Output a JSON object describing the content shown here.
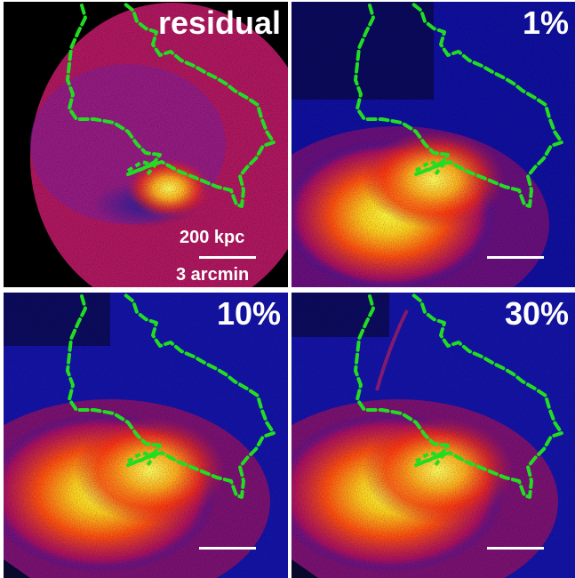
{
  "panels": [
    {
      "label": "residual",
      "scale_top": "200 kpc",
      "scale_bottom": "3 arcmin"
    },
    {
      "label": "1%"
    },
    {
      "label": "10%"
    },
    {
      "label": "30%"
    }
  ],
  "colors": {
    "contour": "#22dd22",
    "background": "#000000",
    "scale_bar": "#ffffff"
  }
}
